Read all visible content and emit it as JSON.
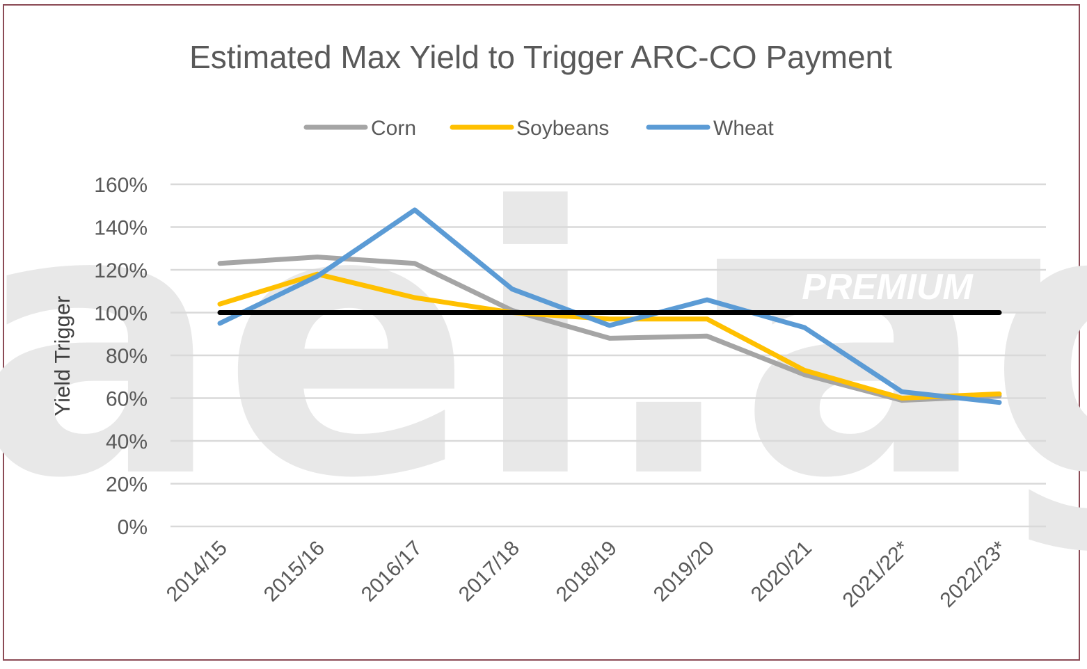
{
  "chart_data": {
    "type": "line",
    "title": "Estimated Max Yield to Trigger ARC-CO Payment",
    "ylabel": "Yield Trigger",
    "xlabel": "",
    "categories": [
      "2014/15",
      "2015/16",
      "2016/17",
      "2017/18",
      "2018/19",
      "2019/20",
      "2020/21",
      "2021/22*",
      "2022/23*"
    ],
    "ylim": [
      0,
      1.6
    ],
    "yticks": [
      0,
      0.2,
      0.4,
      0.6,
      0.8,
      1.0,
      1.2,
      1.4,
      1.6
    ],
    "ytick_labels": [
      "0%",
      "20%",
      "40%",
      "60%",
      "80%",
      "100%",
      "120%",
      "140%",
      "160%"
    ],
    "grid": true,
    "legend_position": "top",
    "series": [
      {
        "name": "Corn",
        "color": "#a5a5a5",
        "values": [
          1.23,
          1.26,
          1.23,
          1.01,
          0.88,
          0.89,
          0.71,
          0.59,
          0.61
        ]
      },
      {
        "name": "Soybeans",
        "color": "#ffc000",
        "values": [
          1.04,
          1.18,
          1.07,
          1.0,
          0.97,
          0.97,
          0.73,
          0.6,
          0.62
        ]
      },
      {
        "name": "Wheat",
        "color": "#5b9bd5",
        "values": [
          0.95,
          1.17,
          1.48,
          1.11,
          0.94,
          1.06,
          0.93,
          0.63,
          0.58
        ]
      }
    ],
    "reference_line": {
      "value": 1.0,
      "color": "#000000"
    }
  },
  "watermark": {
    "logo_text": "aei.ag",
    "badge_text": "PREMIUM"
  }
}
